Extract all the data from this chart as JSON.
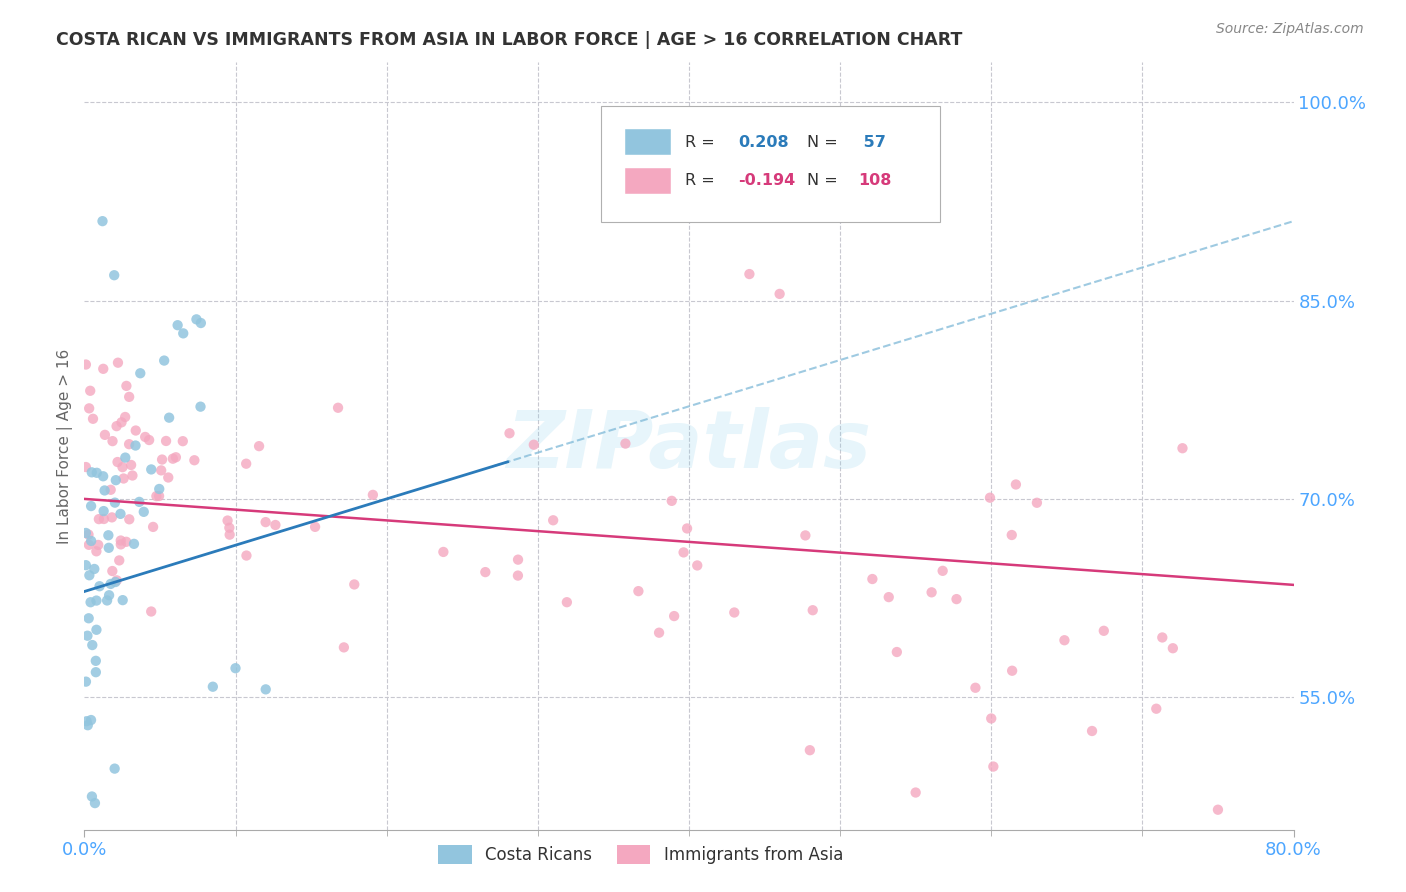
{
  "title": "COSTA RICAN VS IMMIGRANTS FROM ASIA IN LABOR FORCE | AGE > 16 CORRELATION CHART",
  "source": "Source: ZipAtlas.com",
  "ylabel": "In Labor Force | Age > 16",
  "xlim": [
    0.0,
    0.8
  ],
  "ylim": [
    0.45,
    1.03
  ],
  "yticks": [
    0.55,
    0.7,
    0.85,
    1.0
  ],
  "yticklabels": [
    "55.0%",
    "70.0%",
    "85.0%",
    "100.0%"
  ],
  "watermark": "ZIPatlas",
  "color_blue": "#92c5de",
  "color_blue_line": "#2b7bba",
  "color_blue_dash": "#7fb9d8",
  "color_pink": "#f4a8c0",
  "color_pink_line": "#d63a7a",
  "color_axis_label": "#4da6ff",
  "color_gridline": "#c8c8d0",
  "blue_seed": 42,
  "pink_seed": 7,
  "n_blue": 57,
  "n_pink": 108
}
